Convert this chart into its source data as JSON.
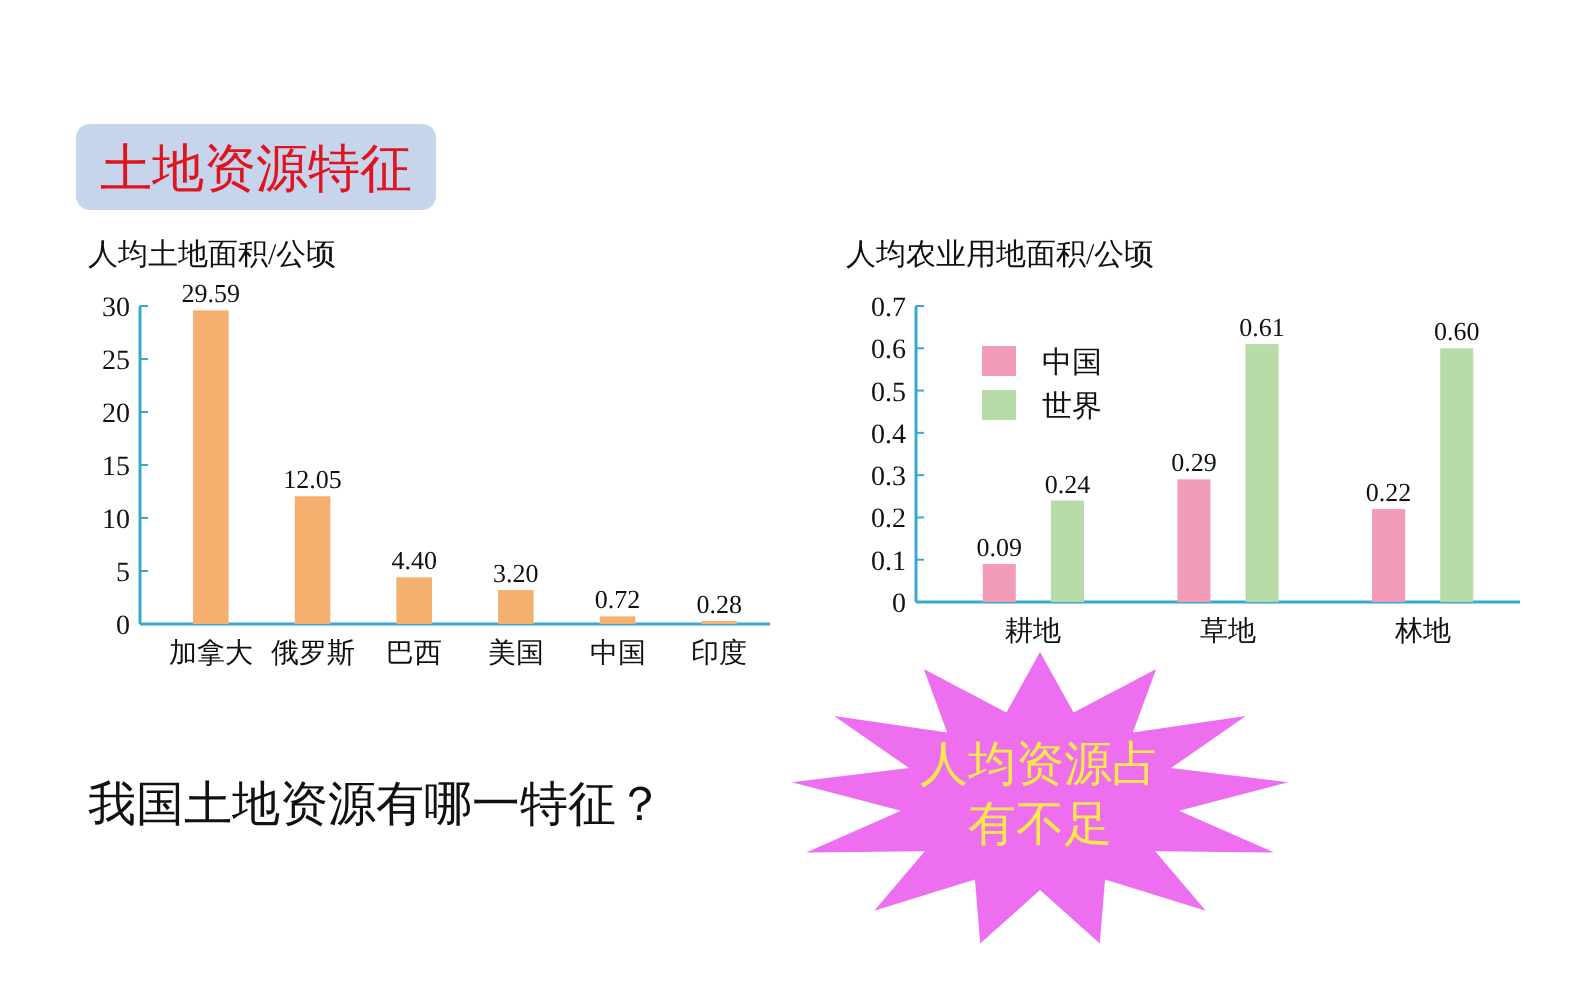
{
  "chart_data": [
    {
      "type": "bar",
      "title": "土地资源特征",
      "ylabel": "人均土地面积/公顷",
      "categories": [
        "加拿大",
        "俄罗斯",
        "巴西",
        "美国",
        "中国",
        "印度"
      ],
      "values": [
        29.59,
        12.05,
        4.4,
        3.2,
        0.72,
        0.28
      ],
      "value_labels": [
        "29.59",
        "12.05",
        "4.40",
        "3.20",
        "0.72",
        "0.28"
      ],
      "color": "#f5b070",
      "ylim": [
        0,
        30
      ],
      "yticks": [
        0,
        5,
        10,
        15,
        20,
        25,
        30
      ],
      "grid": false,
      "legend": false,
      "annotations": [
        "我国土地资源有哪一特征？"
      ]
    },
    {
      "type": "bar",
      "ylabel": "人均农业用地面积/公顷",
      "categories": [
        "耕地",
        "草地",
        "林地"
      ],
      "series": [
        {
          "name": "中国",
          "color": "#f29cb8",
          "values": [
            0.09,
            0.29,
            0.22
          ],
          "value_labels": [
            "0.09",
            "0.29",
            "0.22"
          ]
        },
        {
          "name": "世界",
          "color": "#b8dca8",
          "values": [
            0.24,
            0.61,
            0.6
          ],
          "value_labels": [
            "0.24",
            "0.61",
            "0.60"
          ]
        }
      ],
      "ylim": [
        0,
        0.7
      ],
      "yticks": [
        0,
        0.1,
        0.2,
        0.3,
        0.4,
        0.5,
        0.6,
        0.7
      ],
      "grid": false,
      "legend": "top left",
      "annotations": [
        "人均资源占有不足"
      ]
    }
  ]
}
